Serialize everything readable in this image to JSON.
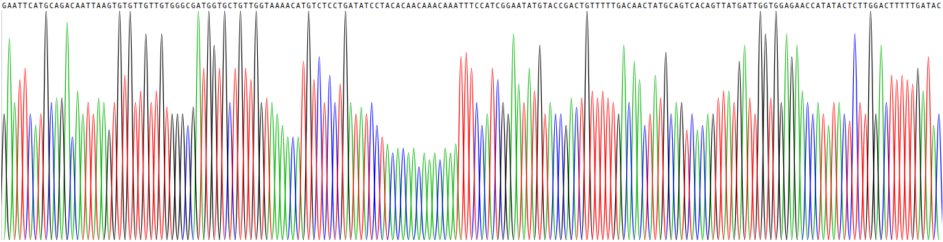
{
  "chart_data": {
    "type": "line",
    "categories": [
      "G",
      "A",
      "A",
      "T",
      "T",
      "C",
      "A",
      "T",
      "G",
      "C",
      "A",
      "G",
      "A",
      "C",
      "A",
      "A",
      "T",
      "T",
      "A",
      "A",
      "G",
      "T",
      "G",
      "T",
      "G",
      "T",
      "T",
      "G",
      "T",
      "T",
      "G",
      "T",
      "G",
      "G",
      "G",
      "C",
      "G",
      "A",
      "T",
      "G",
      "G",
      "T",
      "G",
      "C",
      "T",
      "G",
      "T",
      "T",
      "G",
      "G",
      "T",
      "A",
      "A",
      "A",
      "A",
      "C",
      "A",
      "T",
      "G",
      "T",
      "C",
      "T",
      "C",
      "C",
      "T",
      "G",
      "A",
      "T",
      "A",
      "T",
      "C",
      "C",
      "T",
      "A",
      "C",
      "A",
      "C",
      "A",
      "A",
      "C",
      "A",
      "A",
      "A",
      "C",
      "A",
      "A",
      "A",
      "T",
      "T",
      "T",
      "C",
      "C",
      "A",
      "T",
      "C",
      "G",
      "G",
      "A",
      "A",
      "T",
      "A",
      "T",
      "G",
      "T",
      "A",
      "C",
      "C",
      "G",
      "A",
      "C",
      "T",
      "G",
      "T",
      "T",
      "T",
      "T",
      "T",
      "G",
      "A",
      "C",
      "A",
      "A",
      "C",
      "T",
      "A",
      "T",
      "G",
      "C",
      "A",
      "G",
      "T",
      "C",
      "A",
      "C",
      "A",
      "G",
      "T",
      "T",
      "A",
      "T",
      "G",
      "A",
      "T",
      "T",
      "G",
      "G",
      "T",
      "G",
      "G",
      "A",
      "G",
      "A",
      "A",
      "C",
      "C",
      "A",
      "T",
      "A",
      "T",
      "A",
      "C",
      "T",
      "C",
      "T",
      "T",
      "G",
      "G",
      "A",
      "C",
      "T",
      "T",
      "T",
      "T",
      "T",
      "G",
      "A",
      "T",
      "A",
      "C"
    ],
    "series": [
      {
        "color": "#00b400",
        "x": [
          1,
          2,
          6,
          10,
          12,
          14,
          15,
          18,
          19,
          37,
          51,
          52,
          53,
          54,
          56,
          66,
          68,
          73,
          75,
          77,
          78,
          80,
          81,
          82,
          84,
          85,
          86,
          92,
          97,
          98,
          100,
          104,
          108,
          118,
          120,
          121,
          124,
          128,
          132,
          134,
          138,
          141,
          149,
          151,
          152,
          155,
          157,
          159,
          167,
          175,
          177
        ],
        "values": [
          88,
          60,
          50,
          62,
          95,
          65,
          55,
          62,
          60,
          100,
          60,
          55,
          50,
          45,
          45,
          60,
          58,
          42,
          40,
          38,
          40,
          38,
          35,
          38,
          40,
          38,
          42,
          55,
          90,
          68,
          75,
          60,
          62,
          85,
          78,
          70,
          72,
          60,
          48,
          55,
          65,
          85,
          90,
          85,
          65,
          60,
          50,
          60,
          85,
          65,
          50
        ]
      },
      {
        "color": "#0000ff",
        "x": [
          5,
          9,
          13,
          35,
          43,
          55,
          60,
          62,
          63,
          70,
          71,
          74,
          76,
          79,
          83,
          90,
          91,
          94,
          105,
          106,
          109,
          119,
          122,
          127,
          131,
          133,
          153,
          154,
          160,
          162,
          168,
          178
        ],
        "values": [
          55,
          60,
          45,
          50,
          60,
          45,
          80,
          72,
          60,
          60,
          50,
          38,
          40,
          32,
          35,
          60,
          50,
          70,
          55,
          55,
          58,
          60,
          50,
          55,
          55,
          50,
          60,
          55,
          55,
          90,
          60,
          55
        ]
      },
      {
        "color": "#000000",
        "x": [
          0,
          8,
          11,
          20,
          22,
          24,
          27,
          30,
          32,
          33,
          34,
          36,
          39,
          40,
          42,
          45,
          48,
          49,
          58,
          65,
          95,
          96,
          102,
          107,
          111,
          117,
          126,
          129,
          135,
          140,
          144,
          145,
          147,
          148,
          150,
          165,
          166,
          174
        ],
        "values": [
          55,
          100,
          62,
          48,
          100,
          100,
          90,
          90,
          55,
          55,
          55,
          58,
          100,
          85,
          100,
          100,
          100,
          60,
          100,
          100,
          60,
          55,
          85,
          50,
          100,
          55,
          82,
          60,
          55,
          78,
          100,
          90,
          100,
          60,
          80,
          100,
          55,
          75
        ]
      },
      {
        "color": "#ff0000",
        "x": [
          3,
          4,
          7,
          16,
          17,
          21,
          23,
          25,
          26,
          28,
          29,
          31,
          38,
          41,
          44,
          46,
          47,
          50,
          57,
          59,
          61,
          64,
          67,
          69,
          72,
          87,
          88,
          89,
          93,
          99,
          101,
          103,
          110,
          112,
          113,
          114,
          115,
          116,
          123,
          125,
          130,
          136,
          137,
          139,
          142,
          143,
          146,
          156,
          158,
          161,
          163,
          164,
          169,
          170,
          171,
          172,
          173,
          176
        ],
        "values": [
          70,
          75,
          55,
          60,
          55,
          60,
          72,
          60,
          65,
          60,
          65,
          58,
          75,
          75,
          75,
          75,
          70,
          62,
          78,
          70,
          60,
          68,
          55,
          55,
          45,
          80,
          82,
          75,
          75,
          60,
          65,
          55,
          62,
          65,
          62,
          65,
          62,
          60,
          55,
          62,
          48,
          62,
          65,
          60,
          62,
          55,
          62,
          55,
          60,
          52,
          60,
          55,
          72,
          70,
          72,
          70,
          68,
          80
        ]
      }
    ],
    "ylim": [
      0,
      100
    ],
    "grid": false,
    "tick_labels": "x"
  }
}
